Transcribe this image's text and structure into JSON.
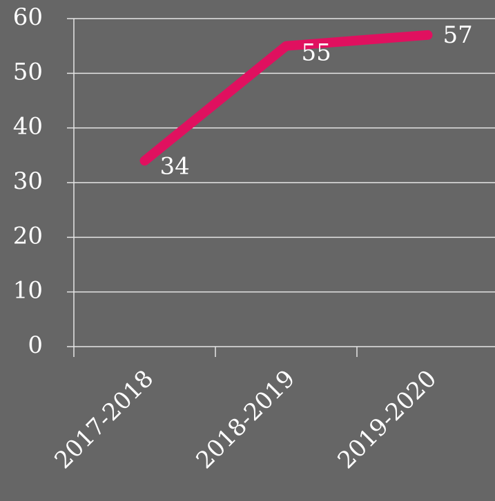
{
  "chart_data": {
    "type": "line",
    "categories": [
      "2017-2018",
      "2018-2019",
      "2019-2020"
    ],
    "values": [
      34,
      55,
      57
    ],
    "color": "#e0105f",
    "ylim": [
      0,
      60
    ],
    "yticks": [
      0,
      10,
      20,
      30,
      40,
      50,
      60
    ],
    "grid": true
  }
}
